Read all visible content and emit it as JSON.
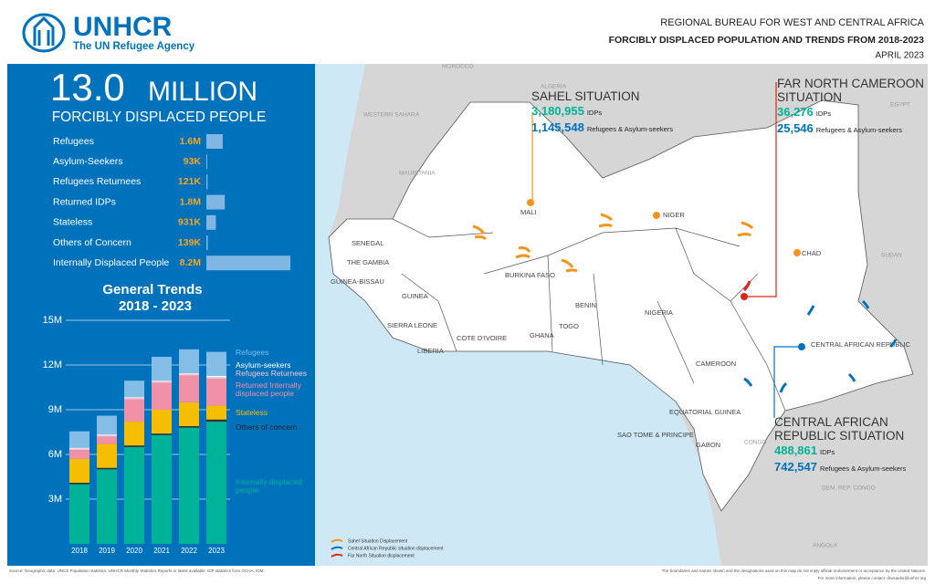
{
  "header": {
    "logo": "UNHCR",
    "logo_subtitle": "The UN Refugee Agency",
    "bureau": "REGIONAL BUREAU FOR WEST AND CENTRAL AFRICA",
    "title": "FORCIBLY DISPLACED POPULATION AND TRENDS FROM 2018-2023",
    "date": "APRIL 2023"
  },
  "headline": {
    "value": "13.0",
    "unit": "MILLION",
    "caption": "FORCIBLY DISPLACED PEOPLE"
  },
  "chart_data": [
    {
      "type": "hbar",
      "categories": [
        "Refugees",
        "Asylum-Seekers",
        "Refugees Returnees",
        "Returned IDPs",
        "Stateless",
        "Others of Concern",
        "Internally Displaced People"
      ],
      "values": [
        1600000,
        93000,
        121000,
        1800000,
        931000,
        139000,
        8200000
      ],
      "value_labels": [
        "1.6M",
        "93K",
        "121K",
        "1.8M",
        "931K",
        "139K",
        "8.2M"
      ],
      "color": "#7fb6e3"
    },
    {
      "type": "stacked_bar",
      "title": "General Trends",
      "subtitle": "2018 - 2023",
      "categories": [
        "2018",
        "2019",
        "2020",
        "2021",
        "2022",
        "2023"
      ],
      "ylim": [
        0,
        15
      ],
      "yticks": [
        {
          "value": 3,
          "label": "3M"
        },
        {
          "value": 6,
          "label": "6M"
        },
        {
          "value": 9,
          "label": "9M"
        },
        {
          "value": 12,
          "label": "12M"
        },
        {
          "value": 15,
          "label": "15M"
        }
      ],
      "series": [
        {
          "name": "Internally displaced people",
          "color": "#00b398",
          "values": [
            4.0,
            5.0,
            6.5,
            7.3,
            7.8,
            8.2
          ]
        },
        {
          "name": "Others of concern",
          "color": "#333333",
          "values": [
            0.1,
            0.1,
            0.1,
            0.1,
            0.1,
            0.14
          ]
        },
        {
          "name": "Stateless",
          "color": "#f6be00",
          "values": [
            1.6,
            1.6,
            1.6,
            1.6,
            1.6,
            0.93
          ]
        },
        {
          "name": "Returned Internally displaced people",
          "color": "#f191a8",
          "values": [
            0.6,
            0.5,
            1.5,
            1.8,
            1.8,
            1.8
          ]
        },
        {
          "name": "Refugees Returnees",
          "color": "#f7c6d2",
          "values": [
            0.1,
            0.1,
            0.1,
            0.1,
            0.1,
            0.12
          ]
        },
        {
          "name": "Asylum-seekers",
          "color": "#ffffff",
          "values": [
            0.05,
            0.05,
            0.05,
            0.05,
            0.05,
            0.09
          ]
        },
        {
          "name": "Refugees",
          "color": "#84bde6",
          "values": [
            1.1,
            1.25,
            1.1,
            1.6,
            1.6,
            1.6
          ]
        }
      ]
    }
  ],
  "map": {
    "countries": [
      "SENEGAL",
      "THE GAMBIA",
      "GUINEA-BISSAU",
      "GUINEA",
      "SIERRA LEONE",
      "LIBERIA",
      "COTE D'IVOIRE",
      "GHANA",
      "TOGO",
      "BENIN",
      "BURKINA FASO",
      "MALI",
      "NIGER",
      "CHAD",
      "NIGERIA",
      "CAMEROON",
      "CENTRAL AFRICAN REPUBLIC",
      "EQUATORIAL GUINEA",
      "SAO TOME & PRINCIPE",
      "GABON"
    ],
    "neighbours": [
      "WESTERN SAHARA",
      "MAURITANIA",
      "ALGERIA",
      "MOROCCO",
      "EGYPT",
      "SUDAN",
      "CONGO",
      "DEM. REP. CONGO",
      "ANGOLA"
    ],
    "situations": [
      {
        "name": "SAHEL SITUATION",
        "idps": "3,180,955",
        "idps_label": "IDPs",
        "refugees": "1,145,548",
        "refugees_label": "Refugees & Asylum-seekers"
      },
      {
        "name": "FAR NORTH CAMEROON SITUATION",
        "idps": "36,276",
        "idps_label": "IDPs",
        "refugees": "25,546",
        "refugees_label": "Refugees & Asylum-seekers"
      },
      {
        "name": "CENTRAL AFRICAN REPUBLIC SITUATION",
        "idps": "488,861",
        "idps_label": "IDPs",
        "refugees": "742,547",
        "refugees_label": "Refugees & Asylum-seekers"
      }
    ],
    "legend": [
      "Sahel Situation Displacement",
      "Central African Republic situation displacement",
      "Far North Situation displacement"
    ]
  },
  "footer": {
    "source": "Source: Geographic data: UNCS Population statistics: UNHCR Monthly Statistics Reports or latest available. IDP statistics from OCHA, IOM.",
    "disclaimer": "The boundaries and names shown and the designations used on this map do not imply official endorsement or acceptance by the United Nations.",
    "contact": "For more information, please contact: rbwcaidsr@unhcr.org"
  }
}
